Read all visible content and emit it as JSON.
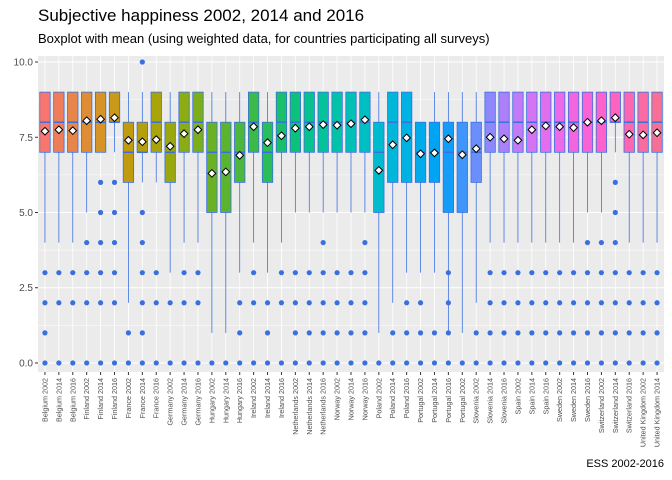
{
  "chart_data": {
    "type": "boxplot",
    "title": "Subjective happiness 2002, 2014 and 2016",
    "subtitle": "Boxplot with mean (using weighted data, for countries participating all surveys)",
    "caption": "ESS 2002-2016",
    "xlabel": "",
    "ylabel": "",
    "ylim": [
      -0.3,
      10.2
    ],
    "y_ticks": [
      0.0,
      2.5,
      5.0,
      7.5,
      10.0
    ],
    "y_tick_labels": [
      "0.0",
      "2.5",
      "5.0",
      "7.5",
      "10.0"
    ],
    "grid": true,
    "legend": "none",
    "colors": {
      "panel": "#EBEBEB",
      "grid": "#FFFFFF",
      "outlier": "#3A6FE0",
      "whisker": "#3A6FE0",
      "mean_fill": "#FFFFFF",
      "mean_stroke": "#000000",
      "median": "#3A6FE0"
    },
    "boxes": [
      {
        "label": "Belgium 2002",
        "q1": 7,
        "median": 8,
        "q3": 9,
        "lower": 4,
        "upper": 9,
        "mean": 7.7,
        "outliers": [
          0,
          1,
          2,
          3
        ],
        "color": "#F8766D"
      },
      {
        "label": "Belgium 2014",
        "q1": 7,
        "median": 8,
        "q3": 9,
        "lower": 4,
        "upper": 9,
        "mean": 7.75,
        "outliers": [
          0,
          2,
          3
        ],
        "color": "#F07D59"
      },
      {
        "label": "Belgium 2016",
        "q1": 7,
        "median": 8,
        "q3": 9,
        "lower": 4,
        "upper": 9,
        "mean": 7.72,
        "outliers": [
          0,
          2,
          3
        ],
        "color": "#E88548"
      },
      {
        "label": "Finland 2002",
        "q1": 7,
        "median": 8,
        "q3": 9,
        "lower": 5,
        "upper": 9,
        "mean": 8.05,
        "outliers": [
          0,
          2,
          3,
          4
        ],
        "color": "#DF8C36"
      },
      {
        "label": "Finland 2014",
        "q1": 7,
        "median": 8,
        "q3": 9,
        "lower": 7,
        "upper": 9,
        "mean": 8.1,
        "outliers": [
          0,
          2,
          3,
          4,
          5,
          6
        ],
        "color": "#D69326"
      },
      {
        "label": "Finland 2016",
        "q1": 8,
        "median": 8,
        "q3": 9,
        "lower": 7,
        "upper": 9,
        "mean": 8.15,
        "outliers": [
          0,
          2,
          3,
          4,
          5,
          6
        ],
        "color": "#CB9918"
      },
      {
        "label": "France 2002",
        "q1": 6,
        "median": 7,
        "q3": 8,
        "lower": 2,
        "upper": 9,
        "mean": 7.4,
        "outliers": [
          0,
          1
        ],
        "color": "#C19A0E"
      },
      {
        "label": "France 2014",
        "q1": 7,
        "median": 7,
        "q3": 8,
        "lower": 6,
        "upper": 9,
        "mean": 7.35,
        "outliers": [
          0,
          1,
          2,
          3,
          4,
          5,
          10
        ],
        "color": "#B59F0A"
      },
      {
        "label": "France 2016",
        "q1": 7,
        "median": 8,
        "q3": 9,
        "lower": 6,
        "upper": 9,
        "mean": 7.42,
        "outliers": [
          0,
          2,
          3
        ],
        "color": "#A8A40A"
      },
      {
        "label": "Germany 2002",
        "q1": 6,
        "median": 7,
        "q3": 8,
        "lower": 3,
        "upper": 9,
        "mean": 7.2,
        "outliers": [
          0,
          2
        ],
        "color": "#9AA80E"
      },
      {
        "label": "Germany 2014",
        "q1": 7,
        "median": 8,
        "q3": 9,
        "lower": 4,
        "upper": 9,
        "mean": 7.62,
        "outliers": [
          0,
          2,
          3
        ],
        "color": "#8BAC14"
      },
      {
        "label": "Germany 2016",
        "q1": 7,
        "median": 8,
        "q3": 9,
        "lower": 4,
        "upper": 9,
        "mean": 7.75,
        "outliers": [
          0,
          2,
          3
        ],
        "color": "#7CAE1C"
      },
      {
        "label": "Hungary 2002",
        "q1": 5,
        "median": 7,
        "q3": 8,
        "lower": 1,
        "upper": 9,
        "mean": 6.3,
        "outliers": [
          0
        ],
        "color": "#6BB125"
      },
      {
        "label": "Hungary 2014",
        "q1": 5,
        "median": 7,
        "q3": 8,
        "lower": 1,
        "upper": 9,
        "mean": 6.35,
        "outliers": [
          0
        ],
        "color": "#5CB42E"
      },
      {
        "label": "Hungary 2016",
        "q1": 6,
        "median": 7,
        "q3": 8,
        "lower": 3,
        "upper": 9,
        "mean": 6.9,
        "outliers": [
          0,
          1,
          2
        ],
        "color": "#4CB73B"
      },
      {
        "label": "Ireland 2002",
        "q1": 7,
        "median": 8,
        "q3": 9,
        "lower": 4,
        "upper": 9,
        "mean": 7.85,
        "outliers": [
          0,
          2,
          3
        ],
        "color": "#3BBA4A"
      },
      {
        "label": "Ireland 2014",
        "q1": 6,
        "median": 7,
        "q3": 8,
        "lower": 3,
        "upper": 9,
        "mean": 7.32,
        "outliers": [
          0,
          1,
          2
        ],
        "color": "#2ABD5A"
      },
      {
        "label": "Ireland 2016",
        "q1": 7,
        "median": 8,
        "q3": 9,
        "lower": 4,
        "upper": 9,
        "mean": 7.55,
        "outliers": [
          0,
          2,
          3
        ],
        "color": "#1ABF6A"
      },
      {
        "label": "Netherlands 2002",
        "q1": 7,
        "median": 8,
        "q3": 9,
        "lower": 5,
        "upper": 9,
        "mean": 7.8,
        "outliers": [
          0,
          1,
          2,
          3
        ],
        "color": "#0DC17B"
      },
      {
        "label": "Netherlands 2014",
        "q1": 7,
        "median": 8,
        "q3": 9,
        "lower": 5,
        "upper": 9,
        "mean": 7.85,
        "outliers": [
          0,
          1,
          2,
          3
        ],
        "color": "#07C28B"
      },
      {
        "label": "Netherlands 2016",
        "q1": 7,
        "median": 8,
        "q3": 9,
        "lower": 5,
        "upper": 9,
        "mean": 7.92,
        "outliers": [
          0,
          1,
          2,
          3,
          4
        ],
        "color": "#04C39A"
      },
      {
        "label": "Norway 2002",
        "q1": 7,
        "median": 8,
        "q3": 9,
        "lower": 5,
        "upper": 9,
        "mean": 7.9,
        "outliers": [
          0,
          1,
          2,
          3
        ],
        "color": "#02C3A8"
      },
      {
        "label": "Norway 2014",
        "q1": 7,
        "median": 8,
        "q3": 9,
        "lower": 5,
        "upper": 9,
        "mean": 7.95,
        "outliers": [
          0,
          1,
          2,
          3
        ],
        "color": "#01C1B5"
      },
      {
        "label": "Norway 2016",
        "q1": 7,
        "median": 8,
        "q3": 9,
        "lower": 5,
        "upper": 9,
        "mean": 8.08,
        "outliers": [
          0,
          1,
          2,
          3,
          4
        ],
        "color": "#00BFC2"
      },
      {
        "label": "Poland 2002",
        "q1": 5,
        "median": 7,
        "q3": 8,
        "lower": 1,
        "upper": 9,
        "mean": 6.4,
        "outliers": [
          0
        ],
        "color": "#00BBCE"
      },
      {
        "label": "Poland 2014",
        "q1": 6,
        "median": 8,
        "q3": 9,
        "lower": 2,
        "upper": 9,
        "mean": 7.25,
        "outliers": [
          0,
          1
        ],
        "color": "#00B7D9"
      },
      {
        "label": "Poland 2016",
        "q1": 6,
        "median": 8,
        "q3": 9,
        "lower": 3,
        "upper": 9,
        "mean": 7.48,
        "outliers": [
          0,
          1,
          2
        ],
        "color": "#00B1E3"
      },
      {
        "label": "Portugal 2002",
        "q1": 6,
        "median": 7,
        "q3": 8,
        "lower": 3,
        "upper": 8,
        "mean": 6.95,
        "outliers": [
          0,
          1,
          2
        ],
        "color": "#00ABEB"
      },
      {
        "label": "Portugal 2014",
        "q1": 6,
        "median": 7,
        "q3": 8,
        "lower": 3,
        "upper": 9,
        "mean": 6.98,
        "outliers": [
          0,
          1
        ],
        "color": "#00A4F2"
      },
      {
        "label": "Portugal 2016",
        "q1": 5,
        "median": 7,
        "q3": 8,
        "lower": 1,
        "upper": 9,
        "mean": 7.45,
        "outliers": [
          0,
          1,
          2,
          3
        ],
        "color": "#149DF7"
      },
      {
        "label": "Portugal 2002",
        "q1": 5,
        "median": 7,
        "q3": 8,
        "lower": 1,
        "upper": 9,
        "mean": 6.92,
        "outliers": [
          0
        ],
        "color": "#3E96FA"
      },
      {
        "label": "Slovenia 2002",
        "q1": 6,
        "median": 7,
        "q3": 8,
        "lower": 2,
        "upper": 9,
        "mean": 7.12,
        "outliers": [
          0,
          1
        ],
        "color": "#6A8FFC"
      },
      {
        "label": "Slovenia 2014",
        "q1": 7,
        "median": 8,
        "q3": 9,
        "lower": 4,
        "upper": 9,
        "mean": 7.5,
        "outliers": [
          0,
          1,
          2,
          3
        ],
        "color": "#8F88FC"
      },
      {
        "label": "Slovenia 2016",
        "q1": 7,
        "median": 8,
        "q3": 9,
        "lower": 4,
        "upper": 9,
        "mean": 7.45,
        "outliers": [
          0,
          1,
          2,
          3
        ],
        "color": "#AD80FA"
      },
      {
        "label": "Spain 2002",
        "q1": 7,
        "median": 8,
        "q3": 9,
        "lower": 4,
        "upper": 9,
        "mean": 7.4,
        "outliers": [
          0,
          1,
          2,
          3
        ],
        "color": "#C27AF7"
      },
      {
        "label": "Spain 2014",
        "q1": 7,
        "median": 8,
        "q3": 9,
        "lower": 4,
        "upper": 9,
        "mean": 7.75,
        "outliers": [
          0,
          1,
          2,
          3
        ],
        "color": "#D474F3"
      },
      {
        "label": "Spain 2016",
        "q1": 7,
        "median": 8,
        "q3": 9,
        "lower": 4,
        "upper": 9,
        "mean": 7.88,
        "outliers": [
          0,
          1,
          2,
          3
        ],
        "color": "#E26EEE"
      },
      {
        "label": "Sweden 2002",
        "q1": 7,
        "median": 8,
        "q3": 9,
        "lower": 4,
        "upper": 9,
        "mean": 7.85,
        "outliers": [
          0,
          1,
          2,
          3
        ],
        "color": "#EC69E7"
      },
      {
        "label": "Sweden 2014",
        "q1": 7,
        "median": 8,
        "q3": 9,
        "lower": 4,
        "upper": 9,
        "mean": 7.82,
        "outliers": [
          0,
          1,
          2,
          3
        ],
        "color": "#F365DF"
      },
      {
        "label": "Sweden 2016",
        "q1": 7,
        "median": 8,
        "q3": 9,
        "lower": 5,
        "upper": 9,
        "mean": 8.0,
        "outliers": [
          0,
          1,
          2,
          3,
          4
        ],
        "color": "#F863D5"
      },
      {
        "label": "Switzerland 2002",
        "q1": 7,
        "median": 8,
        "q3": 9,
        "lower": 5,
        "upper": 9,
        "mean": 8.05,
        "outliers": [
          0,
          1,
          2,
          3,
          4
        ],
        "color": "#FB63CA"
      },
      {
        "label": "Switzerland 2014",
        "q1": 8,
        "median": 8,
        "q3": 9,
        "lower": 7,
        "upper": 9,
        "mean": 8.15,
        "outliers": [
          0,
          1,
          2,
          3,
          4,
          5,
          6
        ],
        "color": "#FC64BD"
      },
      {
        "label": "Switzerland 2016",
        "q1": 7,
        "median": 8,
        "q3": 9,
        "lower": 4,
        "upper": 9,
        "mean": 7.6,
        "outliers": [
          0,
          1,
          2,
          3
        ],
        "color": "#FC67B0"
      },
      {
        "label": "United Kingdom 2002",
        "q1": 7,
        "median": 8,
        "q3": 9,
        "lower": 4,
        "upper": 9,
        "mean": 7.58,
        "outliers": [
          0,
          1,
          2,
          3
        ],
        "color": "#FA6BA2"
      },
      {
        "label": "United Kingdom 2014",
        "q1": 7,
        "median": 8,
        "q3": 9,
        "lower": 4,
        "upper": 9,
        "mean": 7.65,
        "outliers": [
          0,
          1,
          2,
          3
        ],
        "color": "#F77094"
      }
    ]
  }
}
